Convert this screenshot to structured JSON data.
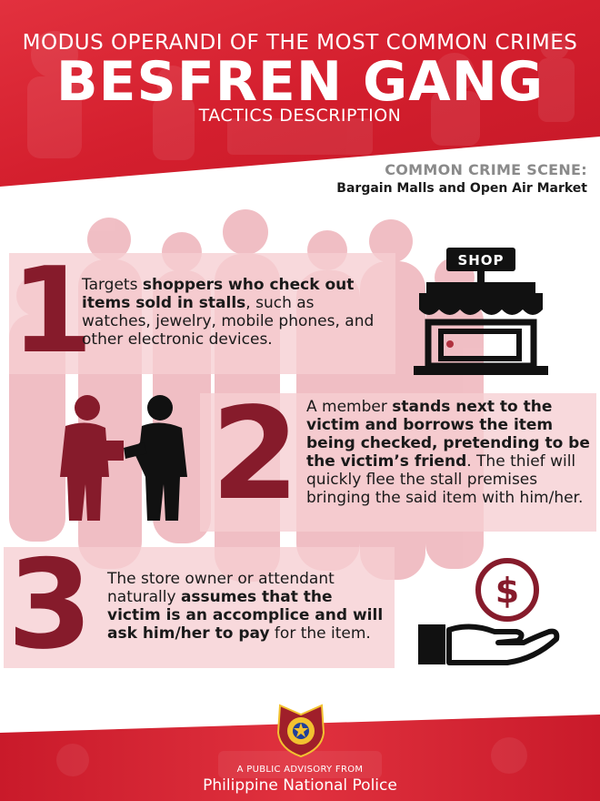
{
  "header": {
    "kicker": "MODUS OPERANDI OF THE MOST COMMON CRIMES",
    "title": "BESFREN GANG",
    "subtitle": "TACTICS DESCRIPTION"
  },
  "scene": {
    "label": "COMMON CRIME SCENE:",
    "value": "Bargain Malls and Open Air Market"
  },
  "colors": {
    "brand_red": "#d7222f",
    "number_red": "#861b2b",
    "band_pink": "#f6ced2"
  },
  "steps": [
    {
      "number": "1",
      "icon": "shop-icon",
      "shop_sign": "SHOP",
      "parts": [
        "Targets ",
        "shoppers who check out items sold in stalls",
        ", such as watches, jewelry, mobile phones, and other electronic devices."
      ]
    },
    {
      "number": "2",
      "icon": "handover-people-icon",
      "parts": [
        "A member ",
        "stands next to the victim and borrows the item being checked, pretending to be the victim’s friend",
        ". The thief will quickly flee the stall premises bringing the said item with him/her."
      ]
    },
    {
      "number": "3",
      "icon": "hand-coin-icon",
      "parts": [
        "The store owner or attendant naturally ",
        "assumes that the victim is an accomplice and will ask him/her to pay",
        " for the item."
      ]
    }
  ],
  "footer": {
    "small": "A PUBLIC ADVISORY FROM",
    "big": "Philippine National Police",
    "badge_icon": "pnp-badge-icon"
  }
}
